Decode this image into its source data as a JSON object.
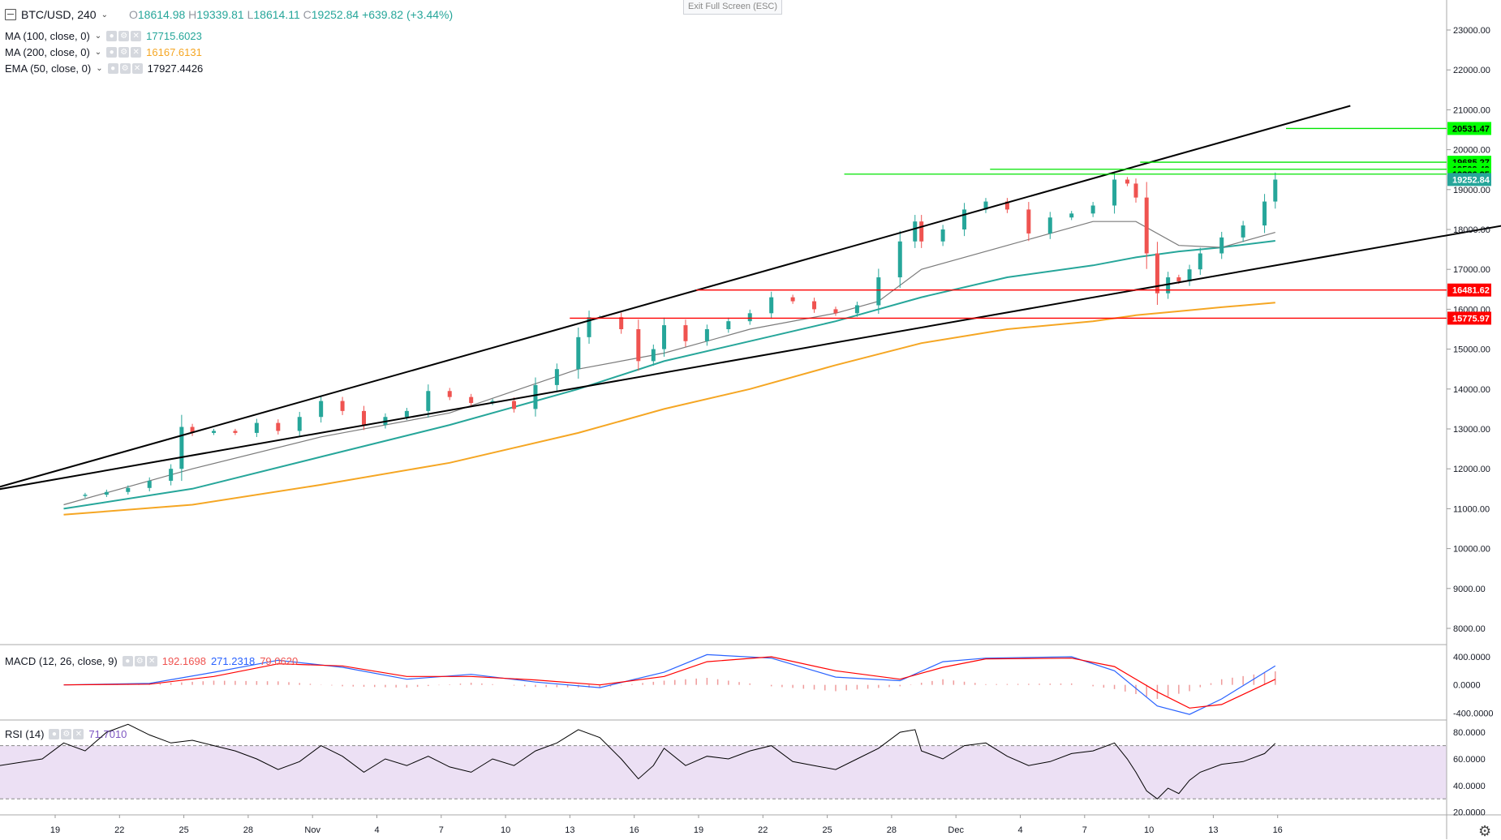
{
  "header": {
    "symbol": "BTC/USD, 240",
    "ohlc": {
      "o_label": "O",
      "o": "18614.98",
      "h_label": "H",
      "h": "19339.81",
      "l_label": "L",
      "l": "18614.11",
      "c_label": "C",
      "c": "19252.84",
      "change": "+639.82 (+3.44%)"
    },
    "exit_fullscreen": "Exit Full Screen (ESC)"
  },
  "indicators": {
    "ma100": {
      "name": "MA (100, close, 0)",
      "value": "17715.6023",
      "color": "#26a69a"
    },
    "ma200": {
      "name": "MA (200, close, 0)",
      "value": "16167.6131",
      "color": "#f5a623"
    },
    "ema50": {
      "name": "EMA (50, close, 0)",
      "value": "17927.4426",
      "color": "#7b7b7b"
    },
    "macd": {
      "name": "MACD (12, 26, close, 9)",
      "hist": "192.1698",
      "macd": "271.2318",
      "signal": "79.0620"
    },
    "rsi": {
      "name": "RSI (14)",
      "value": "71.7010"
    }
  },
  "colors": {
    "up": "#26a69a",
    "down": "#ef5350",
    "trend": "#000000",
    "resistance": "#00e500",
    "support": "#ff0000",
    "macd_line": "#2962ff",
    "signal_line": "#ff0000",
    "rsi_band": "#ece0f4"
  },
  "price_badges": [
    {
      "label": "20531.47",
      "kind": "green"
    },
    {
      "label": "19685.27",
      "kind": "green"
    },
    {
      "label": "19509.49",
      "kind": "green"
    },
    {
      "label": "19386.85",
      "kind": "green"
    },
    {
      "label": "19252.84",
      "kind": "current"
    },
    {
      "label": "16481.62",
      "kind": "red"
    },
    {
      "label": "15775.97",
      "kind": "red"
    }
  ],
  "chart_data": {
    "type": "line",
    "title": "BTC/USD, 240",
    "x_ticks": [
      "19",
      "22",
      "25",
      "28",
      "Nov",
      "4",
      "7",
      "10",
      "13",
      "16",
      "19",
      "22",
      "25",
      "28",
      "Dec",
      "4",
      "7",
      "10",
      "13",
      "16"
    ],
    "y_ticks": [
      "23000.00",
      "22000.00",
      "21000.00",
      "20000.00",
      "19000.00",
      "18000.00",
      "17000.00",
      "16000.00",
      "15000.00",
      "14000.00",
      "13000.00",
      "12000.00",
      "11000.00",
      "10000.00",
      "9000.00",
      "8000.00"
    ],
    "ylim": [
      7700,
      23900
    ],
    "price_close": [
      [
        0,
        11320
      ],
      [
        1,
        11350
      ],
      [
        2,
        11420
      ],
      [
        3,
        11520
      ],
      [
        4,
        11700
      ],
      [
        5,
        12000
      ],
      [
        5.5,
        13050
      ],
      [
        6,
        12900
      ],
      [
        7,
        12950
      ],
      [
        8,
        12900
      ],
      [
        9,
        13150
      ],
      [
        10,
        12950
      ],
      [
        11,
        13300
      ],
      [
        12,
        13700
      ],
      [
        13,
        13450
      ],
      [
        14,
        13100
      ],
      [
        15,
        13300
      ],
      [
        16,
        13450
      ],
      [
        17,
        13950
      ],
      [
        18,
        13800
      ],
      [
        19,
        13650
      ],
      [
        20,
        13700
      ],
      [
        21,
        13500
      ],
      [
        22,
        14100
      ],
      [
        23,
        14500
      ],
      [
        24,
        15300
      ],
      [
        24.5,
        15800
      ],
      [
        25,
        15800
      ],
      [
        26,
        15500
      ],
      [
        26.8,
        14700
      ],
      [
        27.5,
        15000
      ],
      [
        28,
        15600
      ],
      [
        29,
        15200
      ],
      [
        30,
        15500
      ],
      [
        31,
        15700
      ],
      [
        32,
        15900
      ],
      [
        33,
        16300
      ],
      [
        34,
        16200
      ],
      [
        35,
        16000
      ],
      [
        36,
        15900
      ],
      [
        37,
        16100
      ],
      [
        38,
        16800
      ],
      [
        39,
        17700
      ],
      [
        39.7,
        18200
      ],
      [
        40,
        17700
      ],
      [
        41,
        18000
      ],
      [
        42,
        18500
      ],
      [
        43,
        18700
      ],
      [
        44,
        18500
      ],
      [
        45,
        17900
      ],
      [
        46,
        18300
      ],
      [
        47,
        18400
      ],
      [
        48,
        18600
      ],
      [
        49,
        19250
      ],
      [
        49.6,
        19150
      ],
      [
        50,
        18800
      ],
      [
        50.5,
        17400
      ],
      [
        51,
        16400
      ],
      [
        51.5,
        16800
      ],
      [
        52,
        16700
      ],
      [
        52.5,
        17000
      ],
      [
        53,
        17400
      ],
      [
        54,
        17800
      ],
      [
        55,
        18100
      ],
      [
        56,
        18700
      ],
      [
        56.5,
        19250
      ]
    ],
    "ma100": [
      [
        0,
        11000
      ],
      [
        6,
        11500
      ],
      [
        12,
        12300
      ],
      [
        18,
        13100
      ],
      [
        24,
        14000
      ],
      [
        28,
        14700
      ],
      [
        32,
        15200
      ],
      [
        36,
        15700
      ],
      [
        40,
        16300
      ],
      [
        44,
        16800
      ],
      [
        48,
        17100
      ],
      [
        50,
        17300
      ],
      [
        52,
        17450
      ],
      [
        54,
        17550
      ],
      [
        56.5,
        17715.6
      ]
    ],
    "ma200": [
      [
        0,
        10850
      ],
      [
        6,
        11100
      ],
      [
        12,
        11600
      ],
      [
        18,
        12150
      ],
      [
        24,
        12900
      ],
      [
        28,
        13500
      ],
      [
        32,
        14000
      ],
      [
        36,
        14600
      ],
      [
        40,
        15150
      ],
      [
        44,
        15500
      ],
      [
        48,
        15700
      ],
      [
        50,
        15850
      ],
      [
        52,
        15950
      ],
      [
        54,
        16050
      ],
      [
        56.5,
        16167.6
      ]
    ],
    "ema50": [
      [
        0,
        11100
      ],
      [
        6,
        12000
      ],
      [
        12,
        12800
      ],
      [
        18,
        13400
      ],
      [
        24,
        14500
      ],
      [
        28,
        14900
      ],
      [
        32,
        15500
      ],
      [
        36,
        15900
      ],
      [
        38,
        16200
      ],
      [
        40,
        17000
      ],
      [
        44,
        17600
      ],
      [
        48,
        18200
      ],
      [
        50,
        18200
      ],
      [
        52,
        17600
      ],
      [
        54,
        17550
      ],
      [
        56.5,
        17927.4
      ]
    ],
    "trendlines": [
      {
        "from": [
          -6.6,
          11000
        ],
        "to": [
          60,
          21100
        ]
      },
      {
        "from": [
          -6.6,
          11150
        ],
        "to": [
          73.5,
          18700
        ]
      }
    ],
    "levels": [
      {
        "value": 20531.47,
        "from_x": 57,
        "color": "#00e500"
      },
      {
        "value": 19685.27,
        "from_x": 50.2,
        "color": "#00e500"
      },
      {
        "value": 19509.49,
        "from_x": 43.2,
        "color": "#00e500"
      },
      {
        "value": 19386.85,
        "from_x": 36.4,
        "color": "#00e500"
      },
      {
        "value": 16481.62,
        "from_x": 29.5,
        "color": "#ff0000"
      },
      {
        "value": 15775.97,
        "from_x": 23.6,
        "color": "#ff0000"
      }
    ],
    "macd": {
      "y_ticks": [
        "400.0000",
        "0.0000",
        "-400.0000"
      ],
      "ylim": [
        -500,
        550
      ],
      "macd_line": [
        [
          0,
          0
        ],
        [
          4,
          20
        ],
        [
          7,
          180
        ],
        [
          10,
          350
        ],
        [
          13,
          250
        ],
        [
          16,
          80
        ],
        [
          19,
          150
        ],
        [
          22,
          40
        ],
        [
          25,
          -40
        ],
        [
          28,
          180
        ],
        [
          30,
          430
        ],
        [
          33,
          380
        ],
        [
          36,
          110
        ],
        [
          39,
          60
        ],
        [
          41,
          330
        ],
        [
          43,
          380
        ],
        [
          47,
          400
        ],
        [
          49,
          200
        ],
        [
          51,
          -300
        ],
        [
          52.5,
          -420
        ],
        [
          54,
          -200
        ],
        [
          56.5,
          271.2
        ]
      ],
      "signal_line": [
        [
          0,
          0
        ],
        [
          4,
          10
        ],
        [
          7,
          120
        ],
        [
          10,
          300
        ],
        [
          13,
          270
        ],
        [
          16,
          120
        ],
        [
          19,
          120
        ],
        [
          22,
          70
        ],
        [
          25,
          0
        ],
        [
          28,
          120
        ],
        [
          30,
          330
        ],
        [
          33,
          400
        ],
        [
          36,
          200
        ],
        [
          39,
          80
        ],
        [
          41,
          250
        ],
        [
          43,
          370
        ],
        [
          47,
          380
        ],
        [
          49,
          260
        ],
        [
          51,
          -100
        ],
        [
          52.5,
          -330
        ],
        [
          54,
          -280
        ],
        [
          56.5,
          79.1
        ]
      ]
    },
    "rsi": {
      "y_ticks": [
        "80.0000",
        "60.0000",
        "40.0000",
        "20.0000"
      ],
      "ylim": [
        18,
        88
      ],
      "band": [
        30,
        70
      ],
      "values": [
        [
          -6.6,
          50
        ],
        [
          -5,
          44
        ],
        [
          -3,
          55
        ],
        [
          -1,
          60
        ],
        [
          0,
          72
        ],
        [
          1,
          66
        ],
        [
          2,
          80
        ],
        [
          3,
          86
        ],
        [
          4,
          78
        ],
        [
          5,
          72
        ],
        [
          6,
          74
        ],
        [
          7,
          70
        ],
        [
          8,
          66
        ],
        [
          9,
          60
        ],
        [
          10,
          52
        ],
        [
          11,
          58
        ],
        [
          12,
          70
        ],
        [
          13,
          62
        ],
        [
          14,
          50
        ],
        [
          15,
          60
        ],
        [
          16,
          55
        ],
        [
          17,
          62
        ],
        [
          18,
          54
        ],
        [
          19,
          50
        ],
        [
          20,
          60
        ],
        [
          21,
          55
        ],
        [
          22,
          66
        ],
        [
          23,
          72
        ],
        [
          24,
          82
        ],
        [
          25,
          76
        ],
        [
          26,
          60
        ],
        [
          26.8,
          45
        ],
        [
          27.5,
          55
        ],
        [
          28,
          68
        ],
        [
          29,
          55
        ],
        [
          30,
          62
        ],
        [
          31,
          60
        ],
        [
          32,
          66
        ],
        [
          33,
          70
        ],
        [
          34,
          58
        ],
        [
          35,
          55
        ],
        [
          36,
          52
        ],
        [
          37,
          60
        ],
        [
          38,
          68
        ],
        [
          39,
          80
        ],
        [
          39.7,
          82
        ],
        [
          40,
          66
        ],
        [
          41,
          60
        ],
        [
          42,
          70
        ],
        [
          43,
          72
        ],
        [
          44,
          62
        ],
        [
          45,
          55
        ],
        [
          46,
          58
        ],
        [
          47,
          64
        ],
        [
          48,
          66
        ],
        [
          49,
          72
        ],
        [
          49.6,
          60
        ],
        [
          50,
          50
        ],
        [
          50.5,
          36
        ],
        [
          51,
          30
        ],
        [
          51.5,
          38
        ],
        [
          52,
          34
        ],
        [
          52.5,
          44
        ],
        [
          53,
          50
        ],
        [
          54,
          56
        ],
        [
          55,
          58
        ],
        [
          56,
          64
        ],
        [
          56.5,
          71.7
        ]
      ]
    }
  }
}
